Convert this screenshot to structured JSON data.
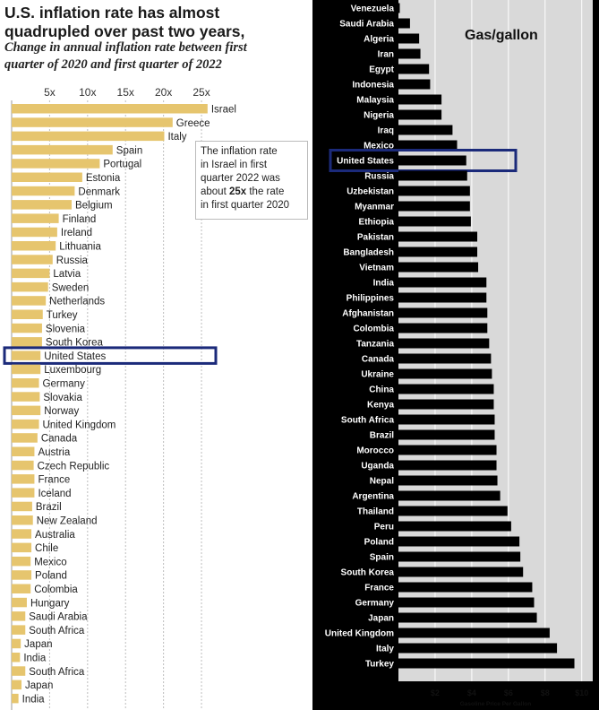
{
  "left_chart": {
    "title_line1": "U.S. inflation rate has almost",
    "title_line2": "quadrupled over past two years,",
    "subtitle_line1": "Change in annual inflation rate between first",
    "subtitle_line2": "quarter of 2020 and first quarter of 2022",
    "annotation": {
      "line1": "The inflation rate",
      "line2": "in Israel in first",
      "line3": "quarter 2022 was",
      "line4_prefix": "about ",
      "line4_bold": "25x",
      "line4_suffix": " the rate",
      "line5": "in first quarter 2020"
    }
  },
  "right_chart": {
    "title": "Gas/gallon",
    "xlabel": "Gasoline Price Per Gallon"
  },
  "colors": {
    "left_bar": "#e6c56e",
    "right_bar": "#000000",
    "right_plot_bg": "#d9d9d9",
    "highlight": "#1b2a7a"
  },
  "highlight_label": "United States",
  "chart_data": [
    {
      "type": "bar",
      "orientation": "horizontal",
      "categories": [
        "Israel",
        "Greece",
        "Italy",
        "Spain",
        "Portugal",
        "Estonia",
        "Denmark",
        "Belgium",
        "Finland",
        "Ireland",
        "Lithuania",
        "Russia",
        "Latvia",
        "Sweden",
        "Netherlands",
        "Turkey",
        "Slovenia",
        "South Korea",
        "United States",
        "Luxembourg",
        "Germany",
        "Slovakia",
        "Norway",
        "United Kingdom",
        "Canada",
        "Austria",
        "Czech Republic",
        "France",
        "Iceland",
        "Brazil",
        "New Zealand",
        "Australia",
        "Chile",
        "Mexico",
        "Poland",
        "Colombia",
        "Hungary",
        "Saudi Arabia",
        "South Africa",
        "Japan",
        "India",
        "South Africa",
        "Japan",
        "India"
      ],
      "values": [
        25.8,
        21.2,
        20.1,
        13.3,
        11.6,
        9.3,
        8.3,
        7.9,
        6.2,
        6.0,
        5.8,
        5.4,
        5.0,
        4.8,
        4.5,
        4.1,
        4.0,
        4.0,
        3.8,
        3.8,
        3.6,
        3.7,
        3.8,
        3.6,
        3.4,
        3.0,
        2.9,
        3.0,
        3.0,
        2.7,
        2.8,
        2.6,
        2.6,
        2.5,
        2.6,
        2.5,
        2.0,
        1.8,
        1.8,
        1.2,
        1.1,
        1.8,
        1.3,
        0.9
      ],
      "xticks": [
        "5x",
        "10x",
        "15x",
        "20x",
        "25x"
      ],
      "xtick_values": [
        5,
        10,
        15,
        20,
        25
      ],
      "xlim": [
        0,
        27
      ],
      "grid": true
    },
    {
      "type": "bar",
      "orientation": "horizontal",
      "categories": [
        "Venezuela",
        "Saudi Arabia",
        "Algeria",
        "Iran",
        "Egypt",
        "Indonesia",
        "Malaysia",
        "Nigeria",
        "Iraq",
        "Mexico",
        "United States",
        "Russia",
        "Uzbekistan",
        "Myanmar",
        "Ethiopia",
        "Pakistan",
        "Bangladesh",
        "Vietnam",
        "India",
        "Philippines",
        "Afghanistan",
        "Colombia",
        "Tanzania",
        "Canada",
        "Ukraine",
        "China",
        "Kenya",
        "South Africa",
        "Brazil",
        "Morocco",
        "Uganda",
        "Nepal",
        "Argentina",
        "Thailand",
        "Peru",
        "Poland",
        "Spain",
        "South Korea",
        "France",
        "Germany",
        "Japan",
        "United Kingdom",
        "Italy",
        "Turkey"
      ],
      "values": [
        0.03,
        0.63,
        1.13,
        1.2,
        1.67,
        1.73,
        2.35,
        2.35,
        2.95,
        3.2,
        3.7,
        3.75,
        3.9,
        3.9,
        3.95,
        4.3,
        4.3,
        4.35,
        4.8,
        4.8,
        4.85,
        4.85,
        4.95,
        5.05,
        5.1,
        5.2,
        5.2,
        5.25,
        5.25,
        5.35,
        5.35,
        5.4,
        5.55,
        5.95,
        6.15,
        6.6,
        6.65,
        6.8,
        7.3,
        7.4,
        7.55,
        8.25,
        8.65,
        9.6
      ],
      "xticks": [
        "$2",
        "$4",
        "$6",
        "$8",
        "$10"
      ],
      "xtick_values": [
        2,
        4,
        6,
        8,
        10
      ],
      "xlim": [
        0,
        10.6
      ],
      "xlabel": "Gasoline Price Per Gallon",
      "grid": true
    }
  ]
}
